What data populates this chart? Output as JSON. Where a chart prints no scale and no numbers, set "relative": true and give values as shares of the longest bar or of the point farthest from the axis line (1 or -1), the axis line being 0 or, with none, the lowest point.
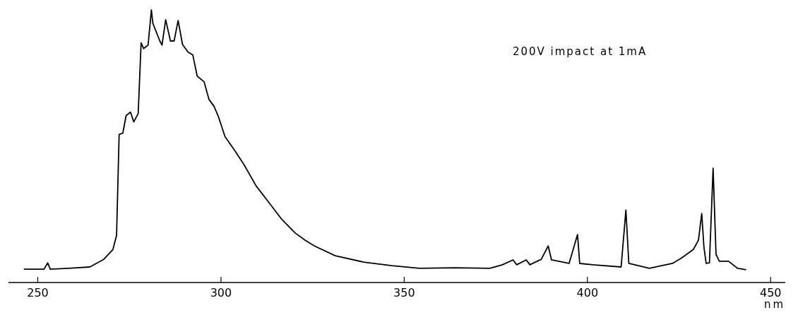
{
  "chart_data": {
    "type": "line",
    "relative": true,
    "xlabel": "nm",
    "annotations": [
      "200V impact at 1mA"
    ],
    "xlim": [
      242,
      454
    ],
    "xticks": [
      250,
      300,
      350,
      400,
      450
    ],
    "grid": false,
    "marker": "none",
    "line_style": "solid",
    "series": [
      {
        "color": "#000000",
        "x": [
          246.2,
          251.7,
          252.7,
          253.4,
          258.4,
          264.2,
          268.0,
          270.5,
          271.5,
          272.2,
          273.2,
          274.1,
          275.3,
          276.2,
          277.4,
          278.2,
          278.9,
          280.1,
          281.0,
          281.4,
          283.3,
          283.9,
          284.9,
          286.2,
          287.2,
          288.3,
          289.5,
          291.0,
          292.3,
          293.5,
          295.4,
          296.7,
          298.1,
          299.2,
          301.1,
          303.8,
          306.3,
          309.6,
          312.6,
          316.5,
          320.3,
          323.0,
          325.5,
          331.2,
          338.9,
          346.6,
          354.2,
          363.8,
          373.4,
          376.8,
          379.7,
          380.7,
          383.3,
          384.3,
          387.4,
          389.3,
          390.2,
          395.0,
          397.3,
          397.9,
          401.5,
          409.2,
          410.5,
          411.3,
          416.9,
          423.2,
          425.7,
          428.9,
          430.3,
          431.2,
          431.8,
          432.4,
          433.3,
          434.3,
          435.1,
          436.0,
          438.5,
          441.0,
          443.3
        ],
        "values": [
          0.049,
          0.049,
          0.072,
          0.049,
          0.052,
          0.057,
          0.085,
          0.121,
          0.173,
          0.543,
          0.548,
          0.612,
          0.625,
          0.589,
          0.62,
          0.879,
          0.858,
          0.871,
          1.0,
          0.951,
          0.886,
          0.871,
          0.964,
          0.886,
          0.886,
          0.961,
          0.873,
          0.845,
          0.835,
          0.757,
          0.736,
          0.672,
          0.646,
          0.612,
          0.535,
          0.483,
          0.432,
          0.354,
          0.302,
          0.233,
          0.181,
          0.155,
          0.134,
          0.098,
          0.075,
          0.062,
          0.052,
          0.054,
          0.052,
          0.065,
          0.083,
          0.065,
          0.083,
          0.065,
          0.085,
          0.134,
          0.083,
          0.07,
          0.176,
          0.07,
          0.065,
          0.057,
          0.266,
          0.07,
          0.052,
          0.07,
          0.09,
          0.121,
          0.155,
          0.253,
          0.129,
          0.07,
          0.072,
          0.419,
          0.103,
          0.078,
          0.078,
          0.052,
          0.047
        ]
      }
    ]
  }
}
